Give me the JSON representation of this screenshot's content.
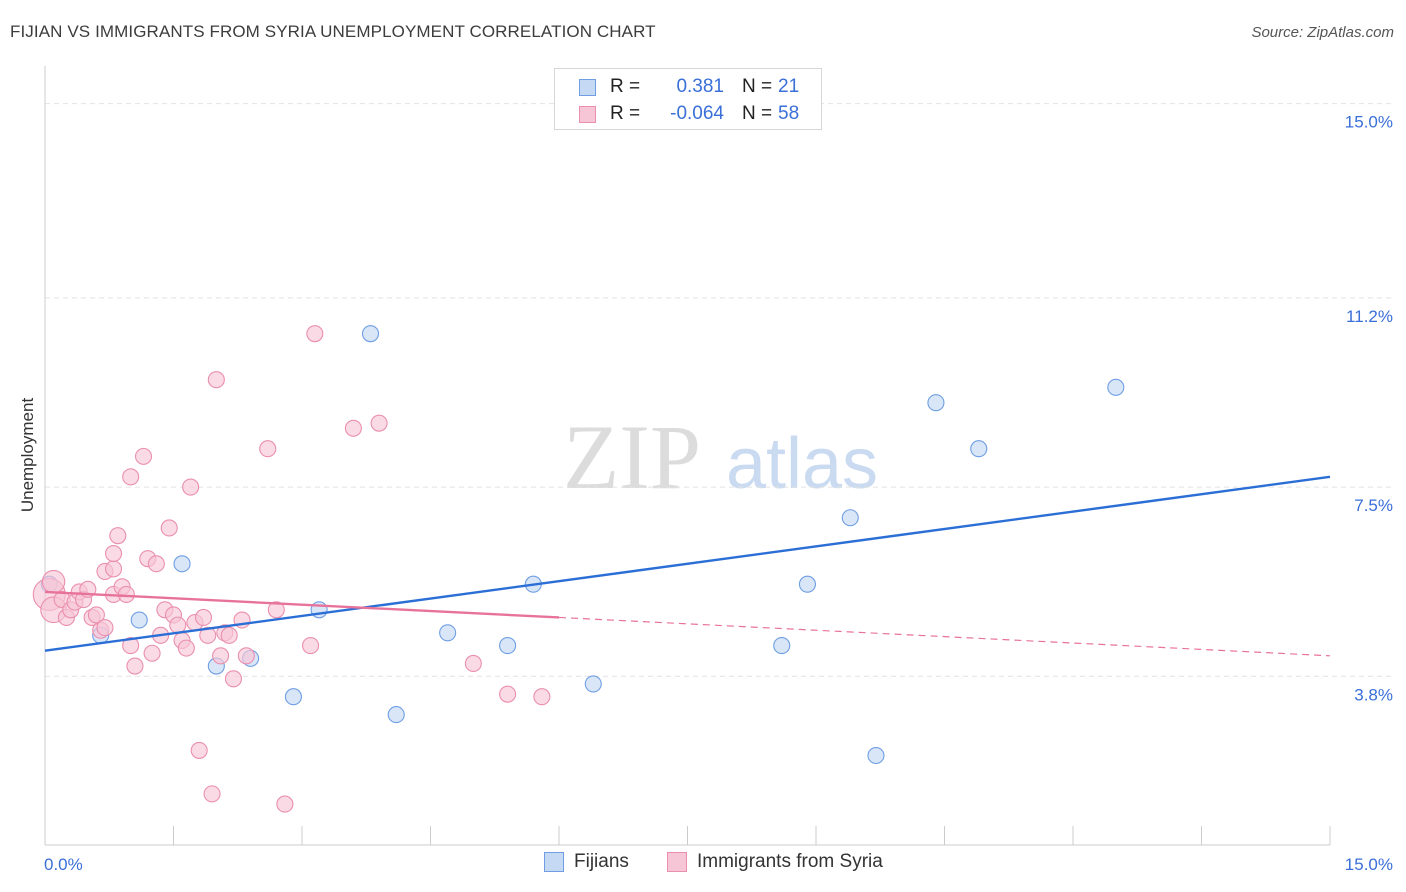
{
  "chart_data": {
    "type": "scatter",
    "title": "FIJIAN VS IMMIGRANTS FROM SYRIA UNEMPLOYMENT CORRELATION CHART",
    "source": "Source: ZipAtlas.com",
    "xlabel": "",
    "ylabel": "Unemployment",
    "xlim": [
      0,
      15
    ],
    "ylim": [
      0.5,
      15.5
    ],
    "x_tick_labels": {
      "left": "0.0%",
      "right": "15.0%"
    },
    "y_ticks": [
      {
        "value": 3.8,
        "label": "3.8%"
      },
      {
        "value": 7.5,
        "label": "7.5%"
      },
      {
        "value": 11.2,
        "label": "11.2%"
      },
      {
        "value": 15.0,
        "label": "15.0%"
      }
    ],
    "watermark": {
      "zip": "ZIP",
      "atlas": "atlas"
    },
    "legend": [
      {
        "series": "Fijians",
        "r_label": "R =",
        "r_value": "0.381",
        "n_label": "N =",
        "n_value": "21"
      },
      {
        "series": "Immigrants from Syria",
        "r_label": "R =",
        "r_value": "-0.064",
        "n_label": "N =",
        "n_value": "58"
      }
    ],
    "series": [
      {
        "name": "Fijians",
        "color": "#6f9ee3",
        "fill": "#c5d9f5",
        "line_color": "#2b6fd6",
        "trend": {
          "x0": 0,
          "y0": 4.3,
          "x1": 15,
          "y1": 7.7,
          "solid_until": 15
        },
        "points": [
          [
            0.05,
            5.6,
            1
          ],
          [
            0.65,
            4.6,
            1
          ],
          [
            1.1,
            4.9,
            1
          ],
          [
            1.6,
            6.0,
            1
          ],
          [
            2.0,
            4.0,
            1
          ],
          [
            2.4,
            4.15,
            1
          ],
          [
            2.9,
            3.4,
            1
          ],
          [
            3.2,
            5.1,
            1
          ],
          [
            3.8,
            10.5,
            1
          ],
          [
            4.1,
            3.05,
            1
          ],
          [
            4.7,
            4.65,
            1
          ],
          [
            5.4,
            4.4,
            1
          ],
          [
            5.7,
            5.6,
            1
          ],
          [
            6.4,
            3.65,
            1
          ],
          [
            8.6,
            4.4,
            1
          ],
          [
            8.9,
            5.6,
            1
          ],
          [
            9.4,
            6.9,
            1
          ],
          [
            9.7,
            2.25,
            1
          ],
          [
            10.4,
            9.15,
            1
          ],
          [
            10.9,
            8.25,
            1
          ],
          [
            12.5,
            9.45,
            1
          ]
        ]
      },
      {
        "name": "Immigrants from Syria",
        "color": "#ea8fae",
        "fill": "#f7c6d6",
        "line_color": "#e8739a",
        "trend": {
          "x0": 0,
          "y0": 5.45,
          "x1": 15,
          "y1": 4.2,
          "solid_until": 6.0
        },
        "points": [
          [
            0.05,
            5.4,
            2
          ],
          [
            0.1,
            5.65,
            1.4
          ],
          [
            0.1,
            5.1,
            1.6
          ],
          [
            0.2,
            5.3,
            1
          ],
          [
            0.25,
            4.95,
            1
          ],
          [
            0.3,
            5.1,
            1
          ],
          [
            0.35,
            5.25,
            1
          ],
          [
            0.4,
            5.45,
            1
          ],
          [
            0.45,
            5.3,
            1
          ],
          [
            0.5,
            5.5,
            1
          ],
          [
            0.55,
            4.95,
            1
          ],
          [
            0.6,
            5.0,
            1
          ],
          [
            0.65,
            4.7,
            1
          ],
          [
            0.7,
            4.75,
            1
          ],
          [
            0.7,
            5.85,
            1
          ],
          [
            0.8,
            5.9,
            1
          ],
          [
            0.8,
            5.4,
            1
          ],
          [
            0.8,
            6.2,
            1
          ],
          [
            0.85,
            6.55,
            1
          ],
          [
            0.9,
            5.55,
            1
          ],
          [
            0.95,
            5.4,
            1
          ],
          [
            1.0,
            7.7,
            1
          ],
          [
            1.0,
            4.4,
            1
          ],
          [
            1.05,
            4.0,
            1
          ],
          [
            1.15,
            8.1,
            1
          ],
          [
            1.2,
            6.1,
            1
          ],
          [
            1.25,
            4.25,
            1
          ],
          [
            1.3,
            6.0,
            1
          ],
          [
            1.35,
            4.6,
            1
          ],
          [
            1.4,
            5.1,
            1
          ],
          [
            1.45,
            6.7,
            1
          ],
          [
            1.5,
            5.0,
            1
          ],
          [
            1.55,
            4.8,
            1
          ],
          [
            1.6,
            4.5,
            1
          ],
          [
            1.65,
            4.35,
            1
          ],
          [
            1.7,
            7.5,
            1
          ],
          [
            1.75,
            4.85,
            1
          ],
          [
            1.8,
            2.35,
            1
          ],
          [
            1.85,
            4.95,
            1
          ],
          [
            1.9,
            4.6,
            1
          ],
          [
            1.95,
            1.5,
            1
          ],
          [
            2.0,
            9.6,
            1
          ],
          [
            2.05,
            4.2,
            1
          ],
          [
            2.1,
            4.65,
            1
          ],
          [
            2.15,
            4.6,
            1
          ],
          [
            2.2,
            3.75,
            1
          ],
          [
            2.3,
            4.9,
            1
          ],
          [
            2.35,
            4.2,
            1
          ],
          [
            2.6,
            8.25,
            1
          ],
          [
            2.7,
            5.1,
            1
          ],
          [
            2.8,
            1.3,
            1
          ],
          [
            3.15,
            10.5,
            1
          ],
          [
            3.1,
            4.4,
            1
          ],
          [
            3.6,
            8.65,
            1
          ],
          [
            3.9,
            8.75,
            1
          ],
          [
            5.0,
            4.05,
            1
          ],
          [
            5.4,
            3.45,
            1
          ],
          [
            5.8,
            3.4,
            1
          ]
        ]
      }
    ]
  }
}
